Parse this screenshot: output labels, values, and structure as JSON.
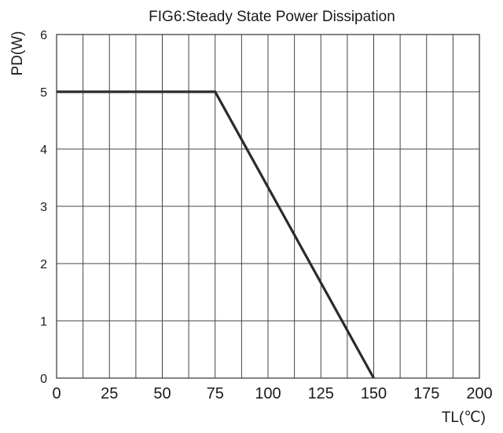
{
  "chart_data": {
    "type": "line",
    "title": "FIG6:Steady State Power Dissipation",
    "xlabel": "TL(℃)",
    "ylabel": "PD(W)",
    "xlim": [
      0,
      200
    ],
    "ylim": [
      0,
      6
    ],
    "x_ticks": [
      0,
      25,
      50,
      75,
      100,
      125,
      150,
      175,
      200
    ],
    "y_ticks": [
      0,
      1,
      2,
      3,
      4,
      5,
      6
    ],
    "x_grid_step": 12.5,
    "y_grid_step": 1,
    "grid": true,
    "series": [
      {
        "x": [
          0,
          75,
          150
        ],
        "y": [
          5,
          5,
          0
        ]
      }
    ],
    "line_color": "#2b2b2b"
  }
}
